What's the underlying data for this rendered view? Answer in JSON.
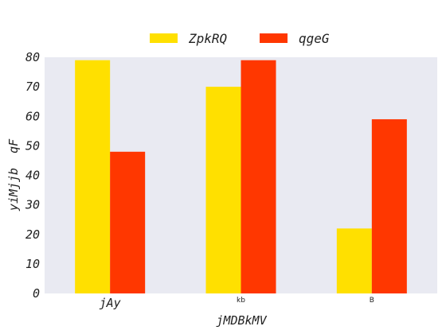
{
  "chart_data": {
    "type": "bar",
    "categories": [
      "jAy",
      "kb",
      "B"
    ],
    "series": [
      {
        "name": "ZpkRQ",
        "color": "#FFE000",
        "values": [
          79,
          70,
          22
        ]
      },
      {
        "name": "qgeG",
        "color": "#FF3700",
        "values": [
          48,
          79,
          59
        ]
      }
    ],
    "xlabel": "jMDBkMV",
    "ylabel": "yiMjjb  qF",
    "ylim": [
      0,
      80
    ],
    "yticks": [
      0,
      10,
      20,
      30,
      40,
      50,
      60,
      70,
      80
    ],
    "grid": false,
    "legend_position": "top-center",
    "plot_background": "#E9EAF2"
  }
}
